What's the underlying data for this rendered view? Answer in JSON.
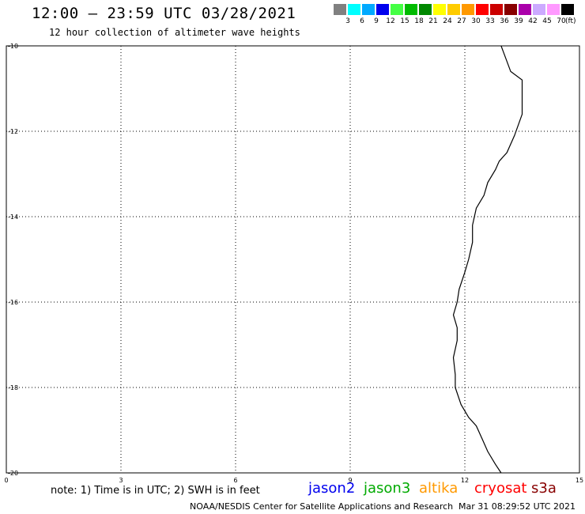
{
  "header": {
    "title": "12:00 — 23:59 UTC 03/28/2021",
    "subtitle": "12 hour collection of altimeter wave heights"
  },
  "color_scale": {
    "colors": [
      "#808080",
      "#00ffff",
      "#00aaff",
      "#0000ee",
      "#44ff44",
      "#00bb00",
      "#008800",
      "#ffff00",
      "#ffcc00",
      "#ff9900",
      "#ff0000",
      "#cc0000",
      "#880000",
      "#aa00aa",
      "#ccaaff",
      "#ff99ff",
      "#000000"
    ],
    "labels": [
      "3",
      "6",
      "9",
      "12",
      "15",
      "18",
      "21",
      "24",
      "27",
      "30",
      "33",
      "36",
      "39",
      "42",
      "45",
      "70"
    ],
    "units": "(ft)"
  },
  "map": {
    "lat_ticks": [
      "-10",
      "-12",
      "-14",
      "-16",
      "-18",
      "-20"
    ],
    "lon_ticks": [
      "0",
      "3",
      "6",
      "9",
      "12",
      "15"
    ],
    "coastline": [
      [
        12.95,
        -10.0
      ],
      [
        13.2,
        -10.6
      ],
      [
        13.5,
        -10.8
      ],
      [
        13.5,
        -11.6
      ],
      [
        13.3,
        -12.1
      ],
      [
        13.1,
        -12.5
      ],
      [
        12.9,
        -12.7
      ],
      [
        12.8,
        -12.9
      ],
      [
        12.6,
        -13.2
      ],
      [
        12.5,
        -13.5
      ],
      [
        12.3,
        -13.8
      ],
      [
        12.2,
        -14.2
      ],
      [
        12.2,
        -14.6
      ],
      [
        12.1,
        -15.0
      ],
      [
        12.0,
        -15.3
      ],
      [
        11.85,
        -15.7
      ],
      [
        11.8,
        -16.0
      ],
      [
        11.7,
        -16.3
      ],
      [
        11.8,
        -16.6
      ],
      [
        11.8,
        -16.9
      ],
      [
        11.7,
        -17.3
      ],
      [
        11.75,
        -17.7
      ],
      [
        11.75,
        -18.0
      ],
      [
        11.9,
        -18.4
      ],
      [
        12.1,
        -18.7
      ],
      [
        12.3,
        -18.9
      ],
      [
        12.45,
        -19.2
      ],
      [
        12.6,
        -19.5
      ],
      [
        12.8,
        -19.8
      ],
      [
        12.95,
        -20.0
      ]
    ]
  },
  "footer": {
    "note": "note: 1) Time is in UTC; 2) SWH is in feet",
    "satellites": [
      {
        "name": "jason2",
        "color": "#0000ee"
      },
      {
        "name": "jason3",
        "color": "#00aa00"
      },
      {
        "name": "altika",
        "color": "#ff9900"
      },
      {
        "name": "cryosat",
        "color": "#ff0000"
      },
      {
        "name": "s3a",
        "color": "#880000"
      }
    ],
    "credit": "NOAA/NESDIS Center for Satellite Applications and Research",
    "timestamp": "Mar 31 08:29:52 UTC 2021"
  }
}
